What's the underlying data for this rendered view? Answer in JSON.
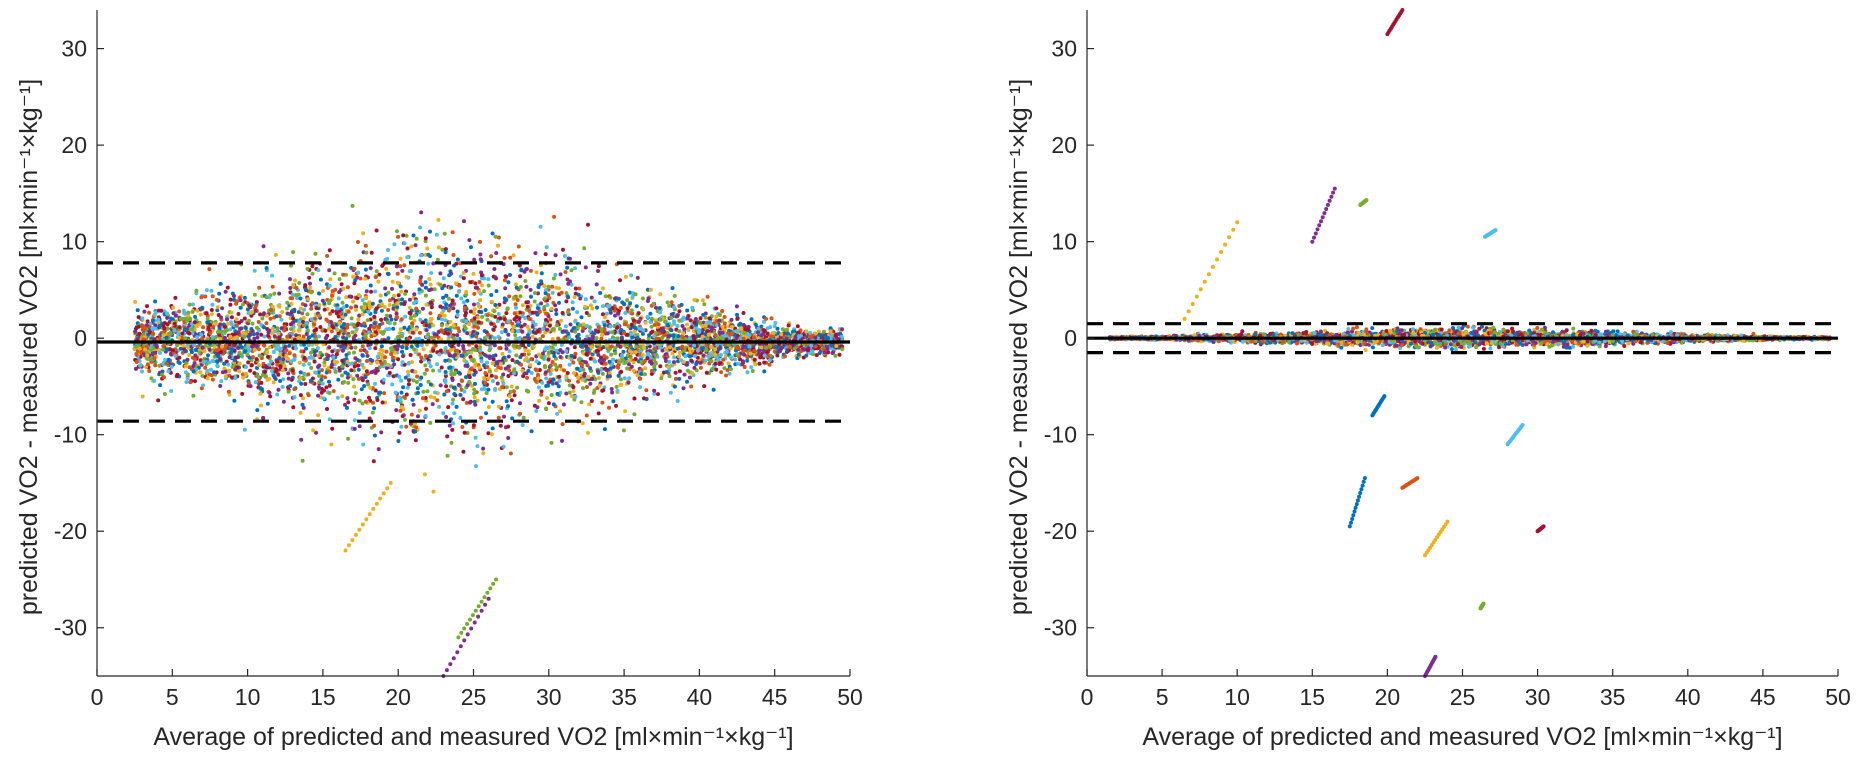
{
  "chart_data": [
    {
      "type": "scatter",
      "title": "",
      "xlabel": "Average of predicted and measured VO2 [ml×min⁻¹×kg⁻¹]",
      "ylabel": "predicted VO2 - measured VO2 [ml×min⁻¹×kg⁻¹]",
      "xlim": [
        0,
        50
      ],
      "ylim": [
        -35,
        34
      ],
      "xticks": [
        "0",
        "5",
        "10",
        "15",
        "20",
        "25",
        "30",
        "35",
        "40",
        "45",
        "50"
      ],
      "yticks": [
        "-30",
        "-20",
        "-10",
        "0",
        "10",
        "20",
        "30"
      ],
      "grid": false,
      "mean_line": -0.4,
      "limits_of_agreement": [
        -8.6,
        7.8
      ],
      "series_colors": [
        "#0072BD",
        "#D95319",
        "#EDB120",
        "#7E2F8E",
        "#77AC30",
        "#4DBEEE",
        "#A2142F"
      ],
      "spread": {
        "x_range": [
          2.5,
          49.5
        ],
        "max_sd": 9.5,
        "peak_x": 22
      },
      "outlier_streaks": [
        {
          "x": [
            16.5,
            19.5
          ],
          "y": [
            -22,
            -15
          ]
        },
        {
          "x": [
            23,
            26
          ],
          "y": [
            -35,
            -27
          ]
        },
        {
          "x": [
            24,
            26.5
          ],
          "y": [
            -31,
            -25
          ]
        }
      ]
    },
    {
      "type": "scatter",
      "title": "",
      "xlabel": "Average of predicted and measured VO2 [ml×min⁻¹×kg⁻¹]",
      "ylabel": "predicted VO2 - measured VO2 [ml×min⁻¹×kg⁻¹]",
      "xlim": [
        0,
        50
      ],
      "ylim": [
        -35,
        34
      ],
      "xticks": [
        "0",
        "5",
        "10",
        "15",
        "20",
        "25",
        "30",
        "35",
        "40",
        "45",
        "50"
      ],
      "yticks": [
        "-30",
        "-20",
        "-10",
        "0",
        "10",
        "20",
        "30"
      ],
      "grid": false,
      "mean_line": 0.0,
      "limits_of_agreement": [
        -1.5,
        1.5
      ],
      "series_colors": [
        "#0072BD",
        "#D95319",
        "#EDB120",
        "#7E2F8E",
        "#77AC30",
        "#4DBEEE",
        "#A2142F"
      ],
      "spread": {
        "x_range": [
          1.5,
          49.5
        ],
        "max_sd": 0.9,
        "peak_x": 25
      },
      "outlier_streaks": [
        {
          "x": [
            6.5,
            10
          ],
          "y": [
            2,
            12
          ]
        },
        {
          "x": [
            15,
            16.5
          ],
          "y": [
            10,
            15.5
          ]
        },
        {
          "x": [
            18.2,
            18.6
          ],
          "y": [
            13.8,
            14.3
          ]
        },
        {
          "x": [
            26.5,
            27.2
          ],
          "y": [
            10.5,
            11.2
          ]
        },
        {
          "x": [
            20,
            21
          ],
          "y": [
            31.5,
            34
          ]
        },
        {
          "x": [
            17.5,
            18.5
          ],
          "y": [
            -19.5,
            -14.5
          ]
        },
        {
          "x": [
            21,
            22
          ],
          "y": [
            -15.5,
            -14.5
          ]
        },
        {
          "x": [
            22.5,
            24
          ],
          "y": [
            -22.5,
            -19
          ]
        },
        {
          "x": [
            22.5,
            23.2
          ],
          "y": [
            -35,
            -33
          ]
        },
        {
          "x": [
            26.2,
            26.4
          ],
          "y": [
            -28,
            -27.5
          ]
        },
        {
          "x": [
            28,
            29
          ],
          "y": [
            -11,
            -9
          ]
        },
        {
          "x": [
            30,
            30.4
          ],
          "y": [
            -20,
            -19.5
          ]
        },
        {
          "x": [
            19,
            19.8
          ],
          "y": [
            -8,
            -6
          ]
        }
      ]
    }
  ]
}
